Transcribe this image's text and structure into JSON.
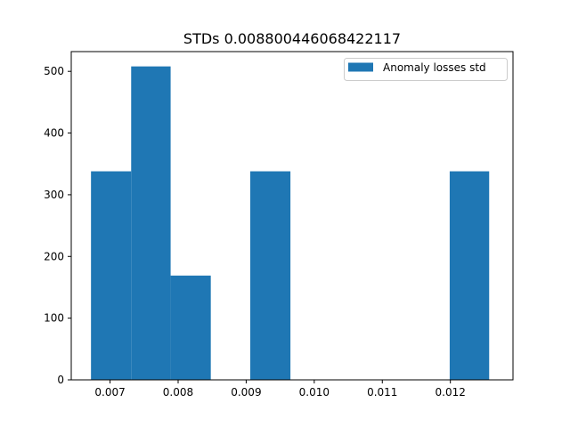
{
  "chart_data": {
    "type": "bar",
    "title": "STDs 0.008800446068422117",
    "xlabel": "",
    "ylabel": "",
    "xlim": [
      0.00643,
      0.01292
    ],
    "ylim": [
      0,
      532
    ],
    "xticks": [
      0.007,
      0.008,
      0.009,
      0.01,
      0.011,
      0.012
    ],
    "xtick_labels": [
      "0.007",
      "0.008",
      "0.009",
      "0.010",
      "0.011",
      "0.012"
    ],
    "yticks": [
      0,
      100,
      200,
      300,
      400,
      500
    ],
    "ytick_labels": [
      "0",
      "100",
      "200",
      "300",
      "400",
      "500"
    ],
    "grid": false,
    "legend_position": "top-right",
    "series": [
      {
        "name": "Anomaly losses std",
        "color": "#1f77b4",
        "bins": [
          {
            "x0": 0.00672,
            "x1": 0.00731,
            "value": 338
          },
          {
            "x0": 0.00731,
            "x1": 0.00789,
            "value": 508
          },
          {
            "x0": 0.00789,
            "x1": 0.00848,
            "value": 169
          },
          {
            "x0": 0.00848,
            "x1": 0.00906,
            "value": 0
          },
          {
            "x0": 0.00906,
            "x1": 0.00965,
            "value": 338
          },
          {
            "x0": 0.00965,
            "x1": 0.01023,
            "value": 0
          },
          {
            "x0": 0.01023,
            "x1": 0.01082,
            "value": 0
          },
          {
            "x0": 0.01082,
            "x1": 0.0114,
            "value": 0
          },
          {
            "x0": 0.0114,
            "x1": 0.01199,
            "value": 0
          },
          {
            "x0": 0.01199,
            "x1": 0.01257,
            "value": 338
          }
        ]
      }
    ]
  }
}
